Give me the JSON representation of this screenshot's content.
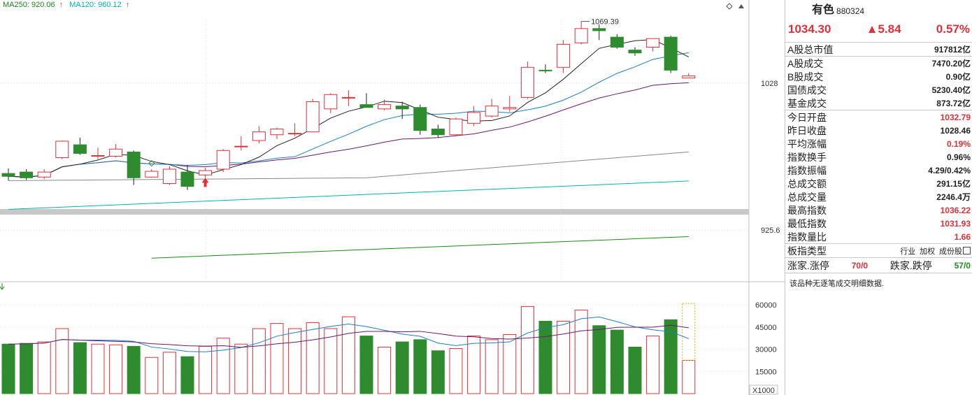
{
  "legend": {
    "ma250_label": "MA250: 920.06",
    "ma120_label": "MA120: 960.12",
    "ma250_color": "#1a8a1a",
    "ma120_color": "#00b4b4"
  },
  "icons": [
    "diamond-icon",
    "scroll-icon",
    "volume-arrow-icon",
    "buy-arrow-icon",
    "sell-diamond-icon"
  ],
  "colors": {
    "up": "#e0303a",
    "down": "#2e8b2e",
    "ma5": "#222222",
    "ma10": "#1f7fc0",
    "ma20": "#6a1a6a",
    "ma60": "#888888"
  },
  "chart_data": [
    {
      "type": "candlestick",
      "title": "",
      "annotations": [
        "1069.39"
      ],
      "y_ticks": [
        "1028",
        "925.6"
      ],
      "y_tick_values": [
        1028,
        925.6
      ],
      "candles": [
        {
          "o": 965.0,
          "h": 968.5,
          "l": 960.0,
          "c": 963.0
        },
        {
          "o": 966.0,
          "h": 968.0,
          "l": 960.5,
          "c": 962.0
        },
        {
          "o": 962.5,
          "h": 968.0,
          "l": 961.0,
          "c": 966.0
        },
        {
          "o": 976.0,
          "h": 988.0,
          "l": 975.0,
          "c": 987.5
        },
        {
          "o": 985.0,
          "h": 990.0,
          "l": 978.0,
          "c": 979.0
        },
        {
          "o": 977.0,
          "h": 983.0,
          "l": 975.0,
          "c": 977.5
        },
        {
          "o": 977.0,
          "h": 985.5,
          "l": 976.0,
          "c": 982.0
        },
        {
          "o": 980.0,
          "h": 981.0,
          "l": 957.0,
          "c": 962.0
        },
        {
          "o": 962.5,
          "h": 968.0,
          "l": 962.0,
          "c": 966.5
        },
        {
          "o": 958.0,
          "h": 970.0,
          "l": 957.0,
          "c": 968.0
        },
        {
          "o": 966.0,
          "h": 971.0,
          "l": 953.5,
          "c": 956.0
        },
        {
          "o": 964.0,
          "h": 969.0,
          "l": 962.0,
          "c": 967.0
        },
        {
          "o": 968.0,
          "h": 982.0,
          "l": 966.0,
          "c": 981.0
        },
        {
          "o": 984.0,
          "h": 991.0,
          "l": 981.0,
          "c": 984.0
        },
        {
          "o": 988.0,
          "h": 998.0,
          "l": 986.0,
          "c": 994.0
        },
        {
          "o": 992.0,
          "h": 997.0,
          "l": 989.0,
          "c": 996.0
        },
        {
          "o": 993.0,
          "h": 1000.0,
          "l": 991.0,
          "c": 993.0
        },
        {
          "o": 994.0,
          "h": 1017.0,
          "l": 994.0,
          "c": 1015.0
        },
        {
          "o": 1010.0,
          "h": 1021.0,
          "l": 1007.0,
          "c": 1020.0
        },
        {
          "o": 1018.0,
          "h": 1023.0,
          "l": 1012.0,
          "c": 1018.0
        },
        {
          "o": 1013.0,
          "h": 1021.0,
          "l": 1012.0,
          "c": 1011.0
        },
        {
          "o": 1010.0,
          "h": 1016.5,
          "l": 1009.0,
          "c": 1013.0
        },
        {
          "o": 1012.0,
          "h": 1015.0,
          "l": 1003.0,
          "c": 1010.0
        },
        {
          "o": 1011.0,
          "h": 1013.0,
          "l": 992.0,
          "c": 995.0
        },
        {
          "o": 996.0,
          "h": 999.0,
          "l": 990.0,
          "c": 992.0
        },
        {
          "o": 992.0,
          "h": 1004.0,
          "l": 991.0,
          "c": 1003.0
        },
        {
          "o": 1000.0,
          "h": 1012.0,
          "l": 998.0,
          "c": 1007.5
        },
        {
          "o": 1005.0,
          "h": 1017.0,
          "l": 1004.0,
          "c": 1012.0
        },
        {
          "o": 1010.0,
          "h": 1019.0,
          "l": 1008.0,
          "c": 1011.0
        },
        {
          "o": 1018.0,
          "h": 1043.0,
          "l": 1017.0,
          "c": 1039.0
        },
        {
          "o": 1037.0,
          "h": 1041.0,
          "l": 1035.0,
          "c": 1036.5
        },
        {
          "o": 1039.0,
          "h": 1058.0,
          "l": 1035.0,
          "c": 1055.0
        },
        {
          "o": 1056.0,
          "h": 1071.0,
          "l": 1055.0,
          "c": 1066.0
        },
        {
          "o": 1066.0,
          "h": 1069.0,
          "l": 1058.0,
          "c": 1064.5
        },
        {
          "o": 1060.0,
          "h": 1062.0,
          "l": 1052.0,
          "c": 1053.0
        },
        {
          "o": 1051.0,
          "h": 1053.0,
          "l": 1047.0,
          "c": 1049.0
        },
        {
          "o": 1053.0,
          "h": 1059.0,
          "l": 1050.0,
          "c": 1059.0
        },
        {
          "o": 1060.0,
          "h": 1061.0,
          "l": 1035.0,
          "c": 1037.0
        },
        {
          "o": 1031.5,
          "h": 1035.0,
          "l": 1031.5,
          "c": 1033.0
        }
      ]
    },
    {
      "type": "bar",
      "title": "",
      "y_ticks": [
        "60000",
        "45000",
        "30000",
        "15000"
      ],
      "y_tick_values": [
        60000,
        45000,
        30000,
        15000
      ],
      "unit_label": "X1000",
      "values": [
        33500,
        34000,
        35000,
        44000,
        34500,
        33500,
        33000,
        32000,
        24500,
        28000,
        25000,
        32000,
        37500,
        33500,
        44000,
        47500,
        44000,
        48000,
        44000,
        52000,
        39000,
        31500,
        35000,
        36500,
        29000,
        30500,
        39000,
        36500,
        40000,
        59000,
        49000,
        49000,
        56500,
        46000,
        43000,
        31500,
        39000,
        50000,
        22500
      ],
      "ylim": [
        0,
        65000
      ]
    }
  ],
  "panel": {
    "name": "有色",
    "code": "880324",
    "price": "1034.30",
    "change": "▲5.84",
    "change_pct": "0.57%",
    "stats1": [
      {
        "label": "A股总市值",
        "value": "917812亿"
      }
    ],
    "stats2": [
      {
        "label": "A股成交",
        "value": "7470.20亿"
      },
      {
        "label": "B股成交",
        "value": "0.90亿"
      },
      {
        "label": "国债成交",
        "value": "5230.40亿"
      },
      {
        "label": "基金成交",
        "value": "873.72亿"
      }
    ],
    "stats3": [
      {
        "label": "今日开盘",
        "value": "1032.79",
        "color": "red"
      },
      {
        "label": "昨日收盘",
        "value": "1028.46",
        "color": ""
      },
      {
        "label": "平均涨幅",
        "value": "0.19%",
        "color": "red"
      },
      {
        "label": "指数换手",
        "value": "0.96%",
        "color": ""
      },
      {
        "label": "指数振幅",
        "value": "4.29/0.42%",
        "color": ""
      },
      {
        "label": "总成交额",
        "value": "291.15亿",
        "color": ""
      },
      {
        "label": "总成交量",
        "value": "2246.4万",
        "color": ""
      },
      {
        "label": "最高指数",
        "value": "1036.22",
        "color": "red"
      },
      {
        "label": "最低指数",
        "value": "1031.93",
        "color": "red"
      },
      {
        "label": "指数量比",
        "value": "1.66",
        "color": "red"
      }
    ],
    "type_label": "板指类型",
    "type_tags": [
      "行业",
      "加权",
      "成份股"
    ],
    "up_label": "涨家.涨停",
    "up_value": "70/0",
    "down_label": "跌家.跌停",
    "down_value": "57/0",
    "note": "该品种无逐笔成交明细数据."
  }
}
